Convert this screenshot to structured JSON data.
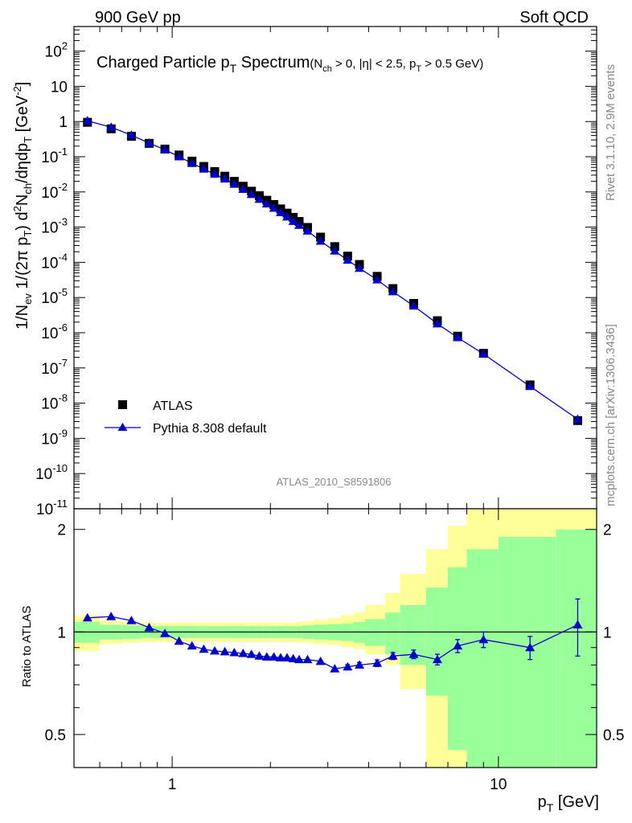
{
  "header": {
    "left": "900 GeV pp",
    "right": "Soft QCD"
  },
  "side_labels": {
    "rivet": "Rivet 3.1.10,  2.9M events",
    "mcplots": "mcplots.cern.ch [arXiv:1306.3436]"
  },
  "colors": {
    "data": "#000000",
    "mc": "#0000cc",
    "band_inner": "#99ff99",
    "band_outer": "#ffff99"
  },
  "chart_data": [
    {
      "type": "scatter",
      "panel": "main",
      "title_main": "Charged Particle p",
      "title_main_sub": "T",
      "title_main_tail": " Spectrum",
      "title_cond": "(N",
      "title_cond_sub1": "ch",
      "title_cond_mid": " > 0, |η| < 2.5, p",
      "title_cond_sub2": "T",
      "title_cond_tail": " > 0.5 GeV)",
      "ylabel": "1/N_ev  1/(2π p_T)  d²N_ch/dηdp_T [GeV⁻²]",
      "ylabel_parts": {
        "a": "1/N",
        "a_sub": "ev",
        "b": "  1/(2π p",
        "b_sub": "T",
        "c": ")  d",
        "c_sup": "2",
        "d": "N",
        "d_sub": "ch",
        "e": "/dηdp",
        "e_sub": "T",
        "f": " [GeV",
        "f_sup": "-2",
        "g": "]"
      },
      "xscale": "log",
      "yscale": "log",
      "xlim": [
        0.5,
        20
      ],
      "ylim": [
        1e-11,
        500
      ],
      "y_tick_labels": [
        {
          "base": "10",
          "exp": "-11",
          "v": 1e-11
        },
        {
          "base": "10",
          "exp": "-10",
          "v": 1e-10
        },
        {
          "base": "10",
          "exp": "-9",
          "v": 1e-09
        },
        {
          "base": "10",
          "exp": "-8",
          "v": 1e-08
        },
        {
          "base": "10",
          "exp": "-7",
          "v": 1e-07
        },
        {
          "base": "10",
          "exp": "-6",
          "v": 1e-06
        },
        {
          "base": "10",
          "exp": "-5",
          "v": 1e-05
        },
        {
          "base": "10",
          "exp": "-4",
          "v": 0.0001
        },
        {
          "base": "10",
          "exp": "-3",
          "v": 0.001
        },
        {
          "base": "10",
          "exp": "-2",
          "v": 0.01
        },
        {
          "base": "10",
          "exp": "-1",
          "v": 0.1
        },
        {
          "base": "1",
          "exp": "",
          "v": 1
        },
        {
          "base": "10",
          "exp": "",
          "v": 10
        },
        {
          "base": "10",
          "exp": "2",
          "v": 100
        }
      ],
      "legend": {
        "placement": "lower-left",
        "data_label": "ATLAS",
        "mc_label": "Pythia 8.308 default"
      },
      "analysis_label": "ATLAS_2010_S8591806",
      "series": [
        {
          "name": "ATLAS",
          "marker": "square",
          "x": [
            0.55,
            0.65,
            0.75,
            0.85,
            0.95,
            1.05,
            1.15,
            1.25,
            1.35,
            1.45,
            1.55,
            1.65,
            1.75,
            1.85,
            1.95,
            2.05,
            2.15,
            2.25,
            2.35,
            2.45,
            2.6,
            2.85,
            3.15,
            3.45,
            3.75,
            4.25,
            4.75,
            5.5,
            6.5,
            7.5,
            9.0,
            12.5,
            17.5
          ],
          "y": [
            0.95,
            0.62,
            0.38,
            0.24,
            0.165,
            0.112,
            0.075,
            0.053,
            0.038,
            0.028,
            0.02,
            0.0145,
            0.0105,
            0.0078,
            0.0058,
            0.0044,
            0.0033,
            0.0025,
            0.0019,
            0.00145,
            0.00098,
            0.00052,
            0.00028,
            0.00015,
            8.7e-05,
            4e-05,
            1.8e-05,
            6.8e-06,
            2.2e-06,
            8e-07,
            2.6e-07,
            3.3e-08,
            3.2e-09
          ]
        },
        {
          "name": "Pythia 8.308 default",
          "marker": "triangle",
          "x": [
            0.55,
            0.65,
            0.75,
            0.85,
            0.95,
            1.05,
            1.15,
            1.25,
            1.35,
            1.45,
            1.55,
            1.65,
            1.75,
            1.85,
            1.95,
            2.05,
            2.15,
            2.25,
            2.35,
            2.45,
            2.6,
            2.85,
            3.15,
            3.45,
            3.75,
            4.25,
            4.75,
            5.5,
            6.5,
            7.5,
            9.0,
            12.5,
            17.5
          ],
          "y": [
            1.05,
            0.69,
            0.41,
            0.245,
            0.158,
            0.1,
            0.065,
            0.045,
            0.032,
            0.0234,
            0.0166,
            0.0119,
            0.0085,
            0.0062,
            0.0046,
            0.00346,
            0.0026,
            0.00195,
            0.00146,
            0.00113,
            0.00078,
            0.0004,
            0.00021,
            0.000116,
            6.8e-05,
            3.2e-05,
            1.47e-05,
            5.8e-06,
            1.8e-06,
            7.3e-07,
            2.5e-07,
            3e-08,
            3.5e-09
          ]
        }
      ]
    },
    {
      "type": "line",
      "panel": "ratio",
      "ylabel": "Ratio to ATLAS",
      "xlabel": "p_T [GeV]",
      "xlabel_parts": {
        "a": "p",
        "a_sub": "T",
        "b": " [GeV]"
      },
      "xscale": "log",
      "yscale": "log",
      "xlim": [
        0.5,
        20
      ],
      "ylim": [
        0.4,
        2.3
      ],
      "y_tick_labels": [
        {
          "label": "0.5",
          "v": 0.5
        },
        {
          "label": "1",
          "v": 1
        },
        {
          "label": "2",
          "v": 2
        }
      ],
      "x_tick_labels": [
        {
          "label": "1",
          "v": 1
        },
        {
          "label": "10",
          "v": 10
        }
      ],
      "bands": {
        "edges": [
          0.5,
          0.6,
          0.7,
          0.8,
          0.9,
          1.0,
          1.1,
          1.2,
          1.3,
          1.4,
          1.5,
          1.6,
          1.7,
          1.8,
          1.9,
          2.0,
          2.1,
          2.2,
          2.3,
          2.4,
          2.5,
          2.7,
          3.0,
          3.3,
          3.6,
          3.9,
          4.5,
          5.0,
          6.0,
          7.0,
          8.0,
          10.0,
          15.0,
          20.0
        ],
        "inner_lo": [
          0.93,
          0.95,
          0.955,
          0.96,
          0.96,
          0.96,
          0.96,
          0.96,
          0.96,
          0.96,
          0.96,
          0.96,
          0.96,
          0.96,
          0.96,
          0.96,
          0.96,
          0.96,
          0.96,
          0.96,
          0.955,
          0.95,
          0.945,
          0.94,
          0.93,
          0.91,
          0.86,
          0.8,
          0.65,
          0.45,
          0.3,
          0.3,
          0.3
        ],
        "inner_hi": [
          1.07,
          1.05,
          1.045,
          1.04,
          1.04,
          1.04,
          1.04,
          1.04,
          1.04,
          1.04,
          1.04,
          1.04,
          1.04,
          1.04,
          1.04,
          1.04,
          1.04,
          1.04,
          1.04,
          1.04,
          1.045,
          1.05,
          1.055,
          1.06,
          1.07,
          1.09,
          1.14,
          1.2,
          1.35,
          1.55,
          1.75,
          1.9,
          2.0
        ],
        "outer_lo": [
          0.88,
          0.92,
          0.93,
          0.935,
          0.935,
          0.935,
          0.935,
          0.935,
          0.935,
          0.935,
          0.935,
          0.935,
          0.935,
          0.935,
          0.935,
          0.935,
          0.935,
          0.935,
          0.935,
          0.93,
          0.93,
          0.92,
          0.915,
          0.9,
          0.89,
          0.86,
          0.8,
          0.68,
          0.3,
          0.3,
          0.3,
          0.3,
          0.3
        ],
        "outer_hi": [
          1.12,
          1.08,
          1.07,
          1.065,
          1.065,
          1.065,
          1.065,
          1.065,
          1.065,
          1.065,
          1.065,
          1.065,
          1.065,
          1.065,
          1.065,
          1.065,
          1.065,
          1.065,
          1.065,
          1.07,
          1.075,
          1.085,
          1.1,
          1.12,
          1.14,
          1.2,
          1.3,
          1.48,
          1.75,
          2.05,
          2.3,
          2.5,
          2.5
        ]
      },
      "series": [
        {
          "name": "Pythia 8.308 default",
          "x": [
            0.55,
            0.65,
            0.75,
            0.85,
            0.95,
            1.05,
            1.15,
            1.25,
            1.35,
            1.45,
            1.55,
            1.65,
            1.75,
            1.85,
            1.95,
            2.05,
            2.15,
            2.25,
            2.35,
            2.45,
            2.6,
            2.85,
            3.15,
            3.45,
            3.75,
            4.25,
            4.75,
            5.5,
            6.5,
            7.5,
            9.0,
            12.5,
            17.5
          ],
          "y": [
            1.1,
            1.11,
            1.08,
            1.03,
            0.99,
            0.94,
            0.91,
            0.89,
            0.88,
            0.875,
            0.87,
            0.865,
            0.86,
            0.85,
            0.845,
            0.845,
            0.84,
            0.84,
            0.835,
            0.83,
            0.83,
            0.82,
            0.78,
            0.79,
            0.8,
            0.81,
            0.85,
            0.86,
            0.83,
            0.91,
            0.95,
            0.9,
            1.05
          ],
          "err": [
            0.005,
            0.005,
            0.005,
            0.005,
            0.005,
            0.005,
            0.005,
            0.005,
            0.005,
            0.005,
            0.005,
            0.005,
            0.005,
            0.005,
            0.005,
            0.005,
            0.005,
            0.005,
            0.005,
            0.005,
            0.006,
            0.008,
            0.01,
            0.012,
            0.014,
            0.018,
            0.02,
            0.025,
            0.03,
            0.04,
            0.05,
            0.07,
            0.2
          ]
        }
      ]
    }
  ]
}
